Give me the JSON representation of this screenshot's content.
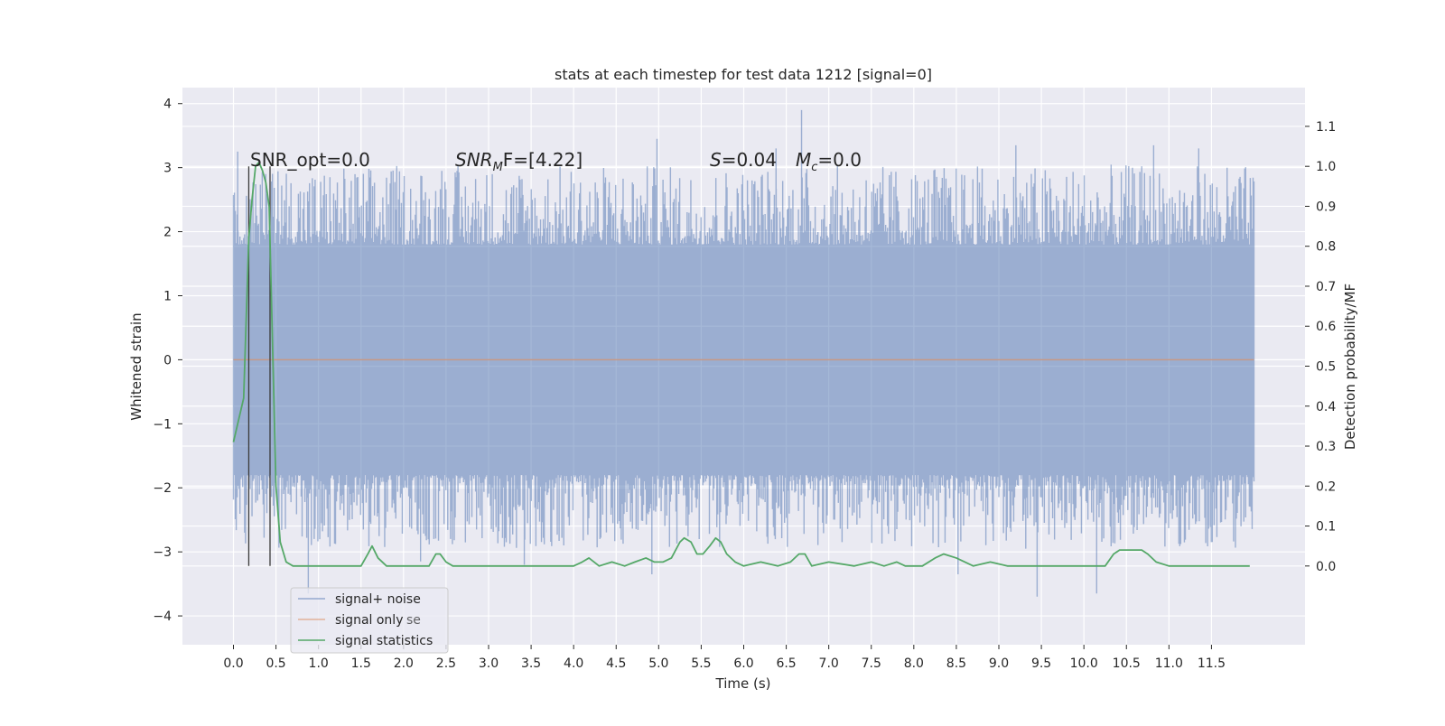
{
  "chart_data": {
    "type": "line",
    "title": "stats at each timestep for test data 1212 [signal=0]",
    "xlabel": "Time (s)",
    "ylabel_left": "Whitened strain",
    "ylabel_right": "Detection probability/MF",
    "xlim": [
      -0.6,
      12.6
    ],
    "ylim_left": [
      -4.45,
      4.25
    ],
    "ylim_right": [
      -0.197,
      1.197
    ],
    "x_tick_values": [
      0.0,
      0.5,
      1.0,
      1.5,
      2.0,
      2.5,
      3.0,
      3.5,
      4.0,
      4.5,
      5.0,
      5.5,
      6.0,
      6.5,
      7.0,
      7.5,
      8.0,
      8.5,
      9.0,
      9.5,
      10.0,
      10.5,
      11.0,
      11.5
    ],
    "x_tick_labels": [
      "0.0",
      "0.5",
      "1.0",
      "1.5",
      "2.0",
      "2.5",
      "3.0",
      "3.5",
      "4.0",
      "4.5",
      "5.0",
      "5.5",
      "6.0",
      "6.5",
      "7.0",
      "7.5",
      "8.0",
      "8.5",
      "9.0",
      "9.5",
      "10.0",
      "10.5",
      "11.0",
      "11.5"
    ],
    "y_left_tick_values": [
      -4,
      -3,
      -2,
      -1,
      0,
      1,
      2,
      3,
      4
    ],
    "y_left_tick_labels": [
      "−4",
      "−3",
      "−2",
      "−1",
      "0",
      "1",
      "2",
      "3",
      "4"
    ],
    "y_right_tick_values": [
      0.0,
      0.1,
      0.2,
      0.3,
      0.4,
      0.5,
      0.6,
      0.7,
      0.8,
      0.9,
      1.0,
      1.1
    ],
    "y_right_tick_labels": [
      "0.0",
      "0.1",
      "0.2",
      "0.3",
      "0.4",
      "0.5",
      "0.6",
      "0.7",
      "0.8",
      "0.9",
      "1.0",
      "1.1"
    ],
    "grid": true,
    "legend_position": "lower-left",
    "annotations": {
      "snr_opt": "SNR_opt=0.0",
      "snr_mf_sym": "SNR",
      "snr_mf_sub": "M",
      "snr_mf_rest": "F=[4.22]",
      "s_sym": "S",
      "s_rest": "=0.04",
      "mc_sym": "M",
      "mc_sub": "c",
      "mc_rest": "=0.0"
    },
    "markers_x": [
      0.18,
      0.43
    ],
    "series": [
      {
        "name": "signal+ noise",
        "color": "#4c72b0",
        "axis": "left",
        "x_range": [
          0.0,
          12.0
        ],
        "core_band": [
          -1.8,
          1.8
        ],
        "spikes": [
          {
            "x": 0.05,
            "y": 3.25
          },
          {
            "x": 0.38,
            "y": 2.9
          },
          {
            "x": 0.88,
            "y": -3.65
          },
          {
            "x": 2.2,
            "y": -3.15
          },
          {
            "x": 2.45,
            "y": 2.95
          },
          {
            "x": 3.42,
            "y": -3.2
          },
          {
            "x": 4.92,
            "y": -3.35
          },
          {
            "x": 4.98,
            "y": 3.45
          },
          {
            "x": 6.38,
            "y": 3.3
          },
          {
            "x": 6.68,
            "y": 3.9
          },
          {
            "x": 8.52,
            "y": -3.35
          },
          {
            "x": 9.2,
            "y": 3.35
          },
          {
            "x": 9.45,
            "y": -3.7
          },
          {
            "x": 10.15,
            "y": -3.65
          },
          {
            "x": 10.82,
            "y": 3.35
          },
          {
            "x": 11.35,
            "y": 3.3
          }
        ]
      },
      {
        "name": "signal only",
        "color": "#dd8452",
        "axis": "left",
        "x": [
          0.0,
          12.0
        ],
        "y": [
          0.0,
          0.0
        ]
      },
      {
        "name": "signal statistics",
        "color": "#55a868",
        "axis": "right",
        "x": [
          0.0,
          0.12,
          0.18,
          0.22,
          0.26,
          0.3,
          0.34,
          0.38,
          0.42,
          0.46,
          0.5,
          0.55,
          0.62,
          0.7,
          0.9,
          1.2,
          1.5,
          1.58,
          1.63,
          1.7,
          1.8,
          2.0,
          2.3,
          2.38,
          2.43,
          2.5,
          2.58,
          2.75,
          3.0,
          3.3,
          3.6,
          4.0,
          4.1,
          4.18,
          4.3,
          4.45,
          4.6,
          4.72,
          4.85,
          4.95,
          5.05,
          5.15,
          5.25,
          5.3,
          5.38,
          5.45,
          5.52,
          5.6,
          5.67,
          5.73,
          5.8,
          5.9,
          6.0,
          6.2,
          6.4,
          6.55,
          6.65,
          6.72,
          6.8,
          7.0,
          7.3,
          7.5,
          7.65,
          7.8,
          7.9,
          8.0,
          8.1,
          8.25,
          8.35,
          8.5,
          8.7,
          8.9,
          9.1,
          9.5,
          10.0,
          10.25,
          10.35,
          10.42,
          10.5,
          10.6,
          10.68,
          10.75,
          10.85,
          11.0,
          11.4,
          11.95
        ],
        "y": [
          0.31,
          0.42,
          0.82,
          0.92,
          1.0,
          1.01,
          0.99,
          0.96,
          0.9,
          0.55,
          0.2,
          0.06,
          0.01,
          0.0,
          0.0,
          0.0,
          0.0,
          0.03,
          0.05,
          0.02,
          0.0,
          0.0,
          0.0,
          0.03,
          0.03,
          0.01,
          0.0,
          0.0,
          0.0,
          0.0,
          0.0,
          0.0,
          0.01,
          0.02,
          0.0,
          0.01,
          0.0,
          0.01,
          0.02,
          0.01,
          0.01,
          0.02,
          0.06,
          0.07,
          0.06,
          0.03,
          0.03,
          0.05,
          0.07,
          0.06,
          0.03,
          0.01,
          0.0,
          0.01,
          0.0,
          0.01,
          0.03,
          0.03,
          0.0,
          0.01,
          0.0,
          0.01,
          0.0,
          0.01,
          0.0,
          0.0,
          0.0,
          0.02,
          0.03,
          0.02,
          0.0,
          0.01,
          0.0,
          0.0,
          0.0,
          0.0,
          0.03,
          0.04,
          0.04,
          0.04,
          0.04,
          0.03,
          0.01,
          0.0,
          0.0,
          0.0
        ]
      }
    ],
    "legend_overlap_text": "se"
  }
}
